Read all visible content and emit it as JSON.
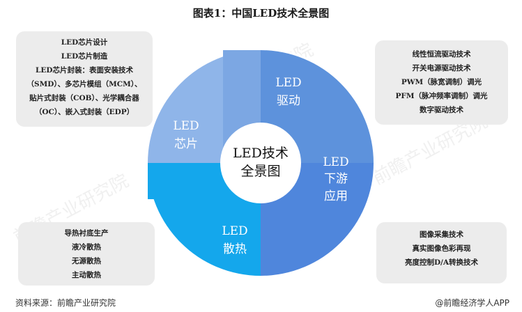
{
  "title": "图表1：中国LED技术全景图",
  "center": {
    "line1": "LED技术",
    "line2": "全景图"
  },
  "segments": {
    "drive": {
      "line1": "LED",
      "line2": "驱动",
      "color": "#5d92dc"
    },
    "downstream": {
      "line1": "LED",
      "line2": "下游",
      "line3": "应用",
      "color": "#4f86dc"
    },
    "heat": {
      "line1": "LED",
      "line2": "散热",
      "color": "#14a7ec"
    },
    "chip": {
      "line1": "LED",
      "line2": "芯片",
      "color": "#8fb5e9"
    }
  },
  "boxes": {
    "chip": [
      "LED芯片设计",
      "LED芯片制造",
      "LED芯片封装：表面安装技术",
      "（SMD）、多芯片模组（MCM）、",
      "贴片式封装（COB）、光学耦合器",
      "（OC）、嵌入式封装（EDP）"
    ],
    "drive": [
      "线性恒流驱动技术",
      "开关电源驱动技术",
      "PWM（脉宽调制）调光",
      "PFM（脉冲频率调制）调光",
      "数字驱动技术"
    ],
    "heat": [
      "导热衬底生产",
      "液冷散热",
      "无源散热",
      "主动散热"
    ],
    "downstream": [
      "图像采集技术",
      "真实图像色彩再现",
      "亮度控制D/A转换技术"
    ]
  },
  "watermark": "前瞻产业研究院",
  "footer": {
    "source": "资料来源：前瞻产业研究院",
    "brand": "@前瞻经济学人APP"
  }
}
